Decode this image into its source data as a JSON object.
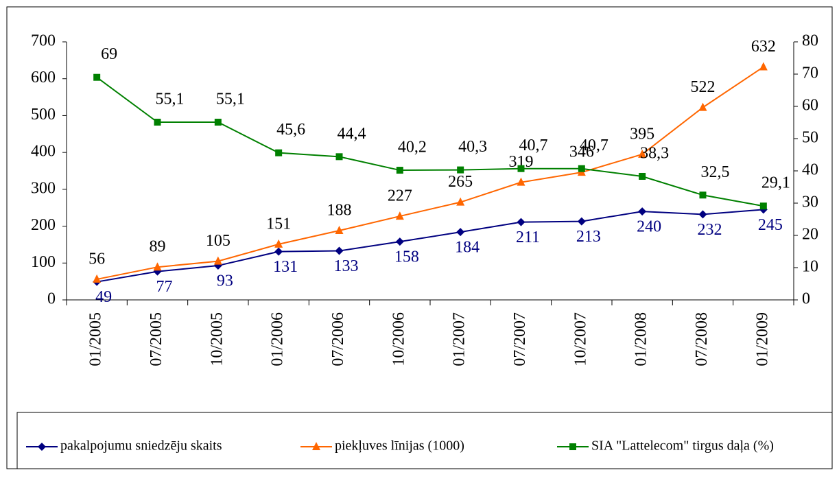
{
  "chart_data": {
    "type": "line",
    "categories": [
      "01/2005",
      "07/2005",
      "10/2005",
      "01/2006",
      "07/2006",
      "10/2006",
      "01/2007",
      "07/2007",
      "10/2007",
      "01/2008",
      "07/2008",
      "01/2009"
    ],
    "ylim": [
      0,
      700
    ],
    "yticks": [
      0,
      100,
      200,
      300,
      400,
      500,
      600,
      700
    ],
    "y2lim": [
      0,
      80
    ],
    "y2ticks": [
      0,
      10,
      20,
      30,
      40,
      50,
      60,
      70,
      80
    ],
    "series": [
      {
        "name": "pakalpojumu sniedzēju skaits",
        "color": "#000080",
        "marker": "diamond",
        "values": [
          49,
          77,
          93,
          131,
          133,
          158,
          184,
          211,
          213,
          240,
          232,
          245
        ]
      },
      {
        "name": "piekļuves līnijas (1000)",
        "color": "#ff6600",
        "marker": "triangle",
        "values": [
          56,
          89,
          105,
          151,
          188,
          227,
          265,
          319,
          346,
          395,
          522,
          632
        ]
      },
      {
        "name": "SIA \"Lattelecom\" tirgus daļa (%)",
        "color": "#008000",
        "marker": "square",
        "axis": "y2",
        "values": [
          69,
          55.1,
          55.1,
          45.6,
          44.4,
          40.2,
          40.3,
          40.7,
          40.7,
          38.3,
          32.5,
          29.1
        ],
        "value_labels": [
          "69",
          "55,1",
          "55,1",
          "45,6",
          "44,4",
          "40,2",
          "40,3",
          "40,7",
          "40,7",
          "38,3",
          "32,5",
          "29,1"
        ]
      }
    ],
    "legend": "bottom"
  }
}
